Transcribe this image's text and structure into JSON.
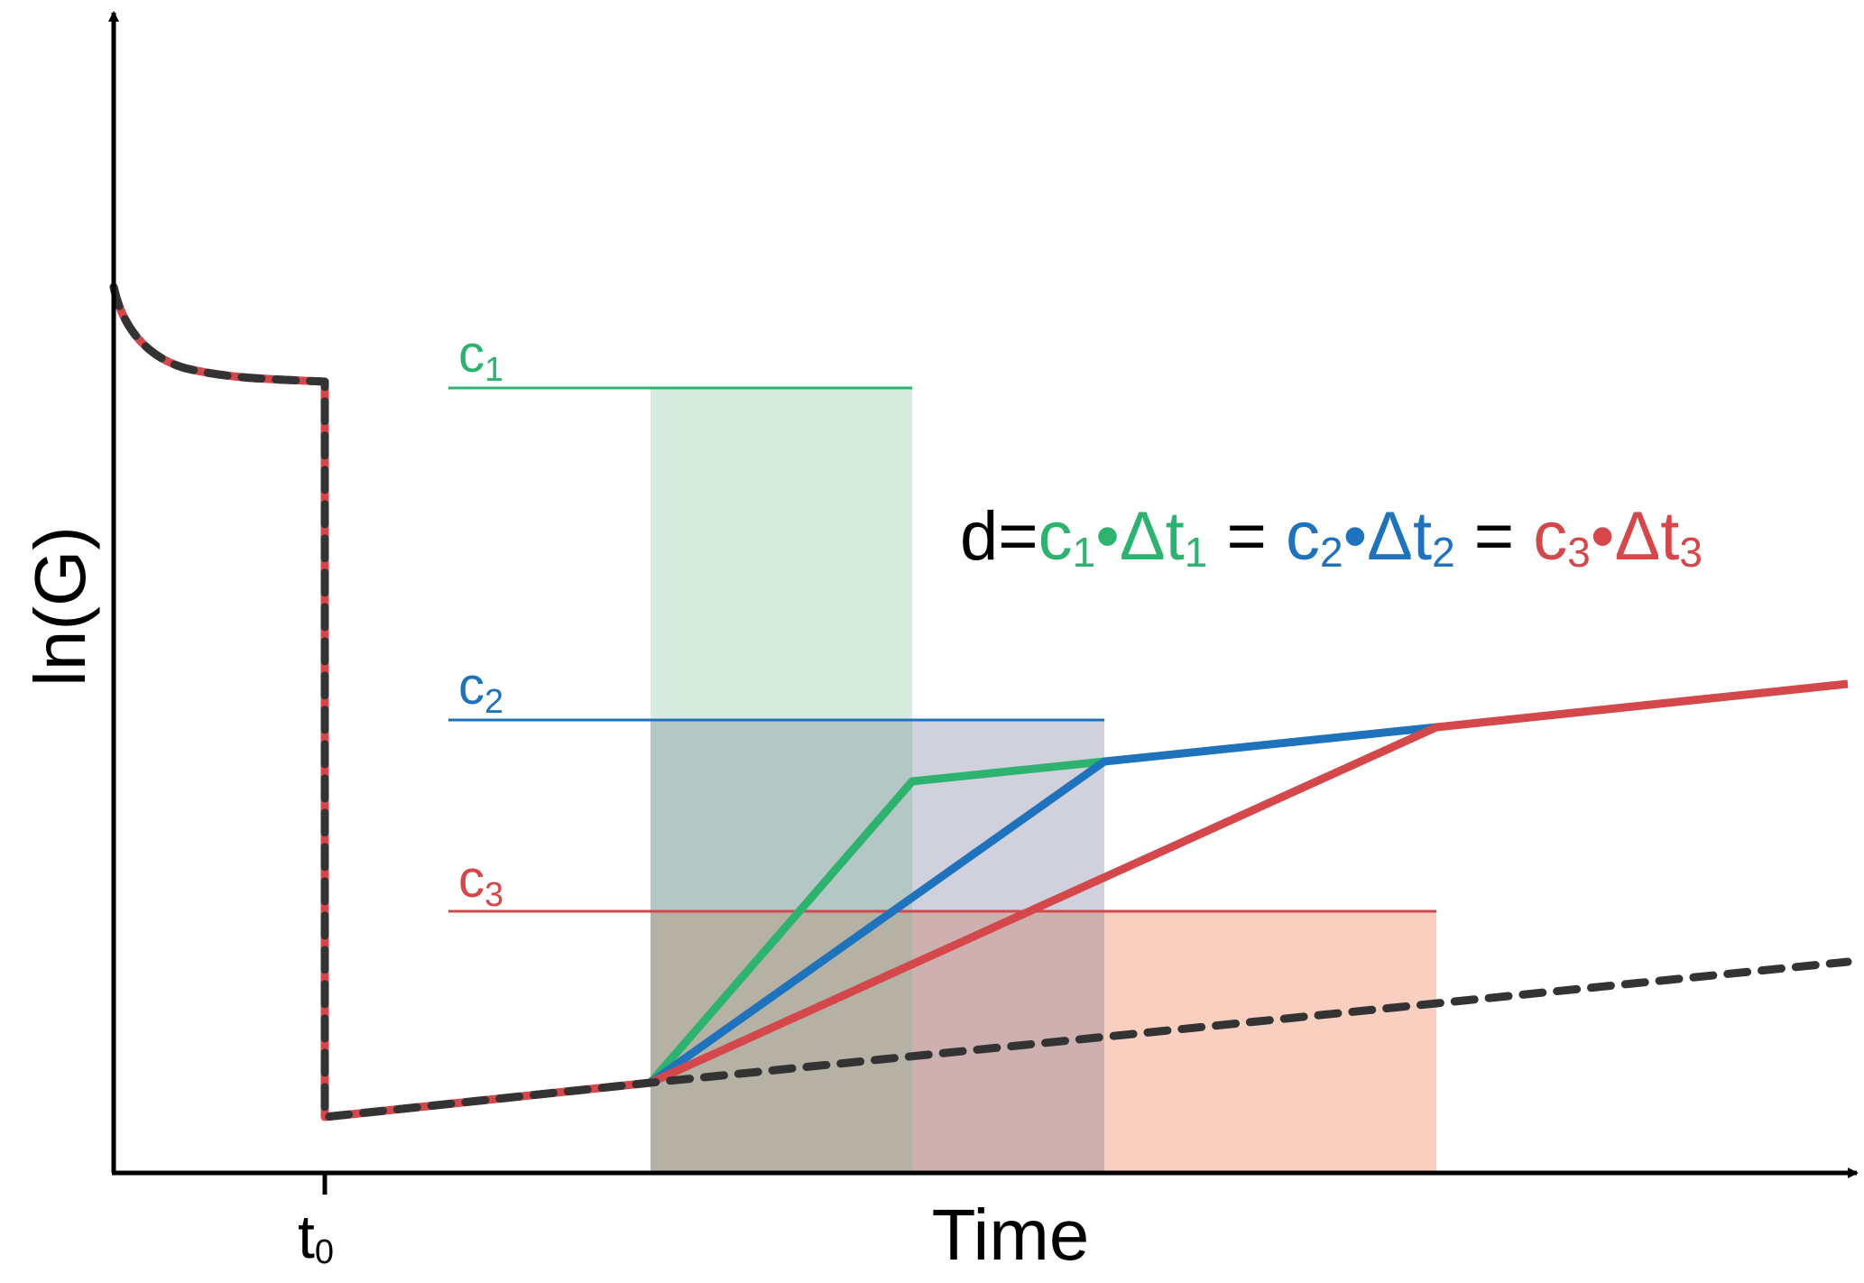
{
  "axes": {
    "y_label": "ln(G)",
    "x_label": "Time",
    "x_tick": {
      "label": "t",
      "subscript": "0"
    }
  },
  "levels": [
    {
      "id": "c1",
      "label": "c",
      "subscript": "1",
      "color": "#2db36f"
    },
    {
      "id": "c2",
      "label": "c",
      "subscript": "2",
      "color": "#1f73bd"
    },
    {
      "id": "c3",
      "label": "c",
      "subscript": "3",
      "color": "#d4474b"
    }
  ],
  "equation": {
    "prefix": "d=",
    "terms": [
      {
        "c": "c",
        "c_sub": "1",
        "dot": "•",
        "dt": "Δt",
        "dt_sub": "1",
        "color": "#2db36f"
      },
      {
        "c": "c",
        "c_sub": "2",
        "dot": "•",
        "dt": "Δt",
        "dt_sub": "2",
        "color": "#1f73bd"
      },
      {
        "c": "c",
        "c_sub": "3",
        "dot": "•",
        "dt": "Δt",
        "dt_sub": "3",
        "color": "#d4474b"
      }
    ],
    "separator": " = ",
    "prefix_color": "#000000"
  },
  "colors": {
    "axis": "#000000",
    "dashed": "#333333",
    "green": "#2db36f",
    "blue": "#1f73bd",
    "red": "#d4474b",
    "green_fill": "#d7ecdf",
    "green_blue_fill": "#b5c7c4",
    "blue_fill": "#d0d1dd",
    "red_fill": "#f9d0c0",
    "all_fill": "#b5b1a5",
    "blue_red_fill": "#cfb0b0"
  }
}
